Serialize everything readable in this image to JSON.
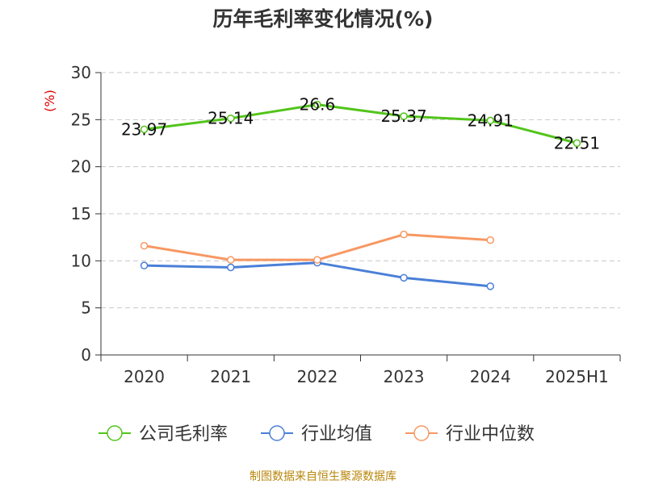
{
  "chart_data": {
    "type": "line",
    "title": "历年毛利率变化情况(%)",
    "ylabel": "(%)",
    "categories": [
      "2020",
      "2021",
      "2022",
      "2023",
      "2024",
      "2025H1"
    ],
    "ylim": [
      0,
      30
    ],
    "yticks": [
      0,
      5,
      10,
      15,
      20,
      25,
      30
    ],
    "grid": true,
    "legend_position": "bottom",
    "series": [
      {
        "name": "公司毛利率",
        "color": "#52c41a",
        "values": [
          23.97,
          25.14,
          26.6,
          25.37,
          24.91,
          22.51
        ],
        "show_labels": true
      },
      {
        "name": "行业均值",
        "color": "#4a7fd8",
        "values": [
          9.5,
          9.3,
          9.8,
          8.2,
          7.3,
          null
        ],
        "show_labels": false
      },
      {
        "name": "行业中位数",
        "color": "#f79862",
        "values": [
          11.6,
          10.1,
          10.1,
          12.8,
          12.2,
          null
        ],
        "show_labels": false
      }
    ]
  },
  "source_note": "制图数据来自恒生聚源数据库"
}
